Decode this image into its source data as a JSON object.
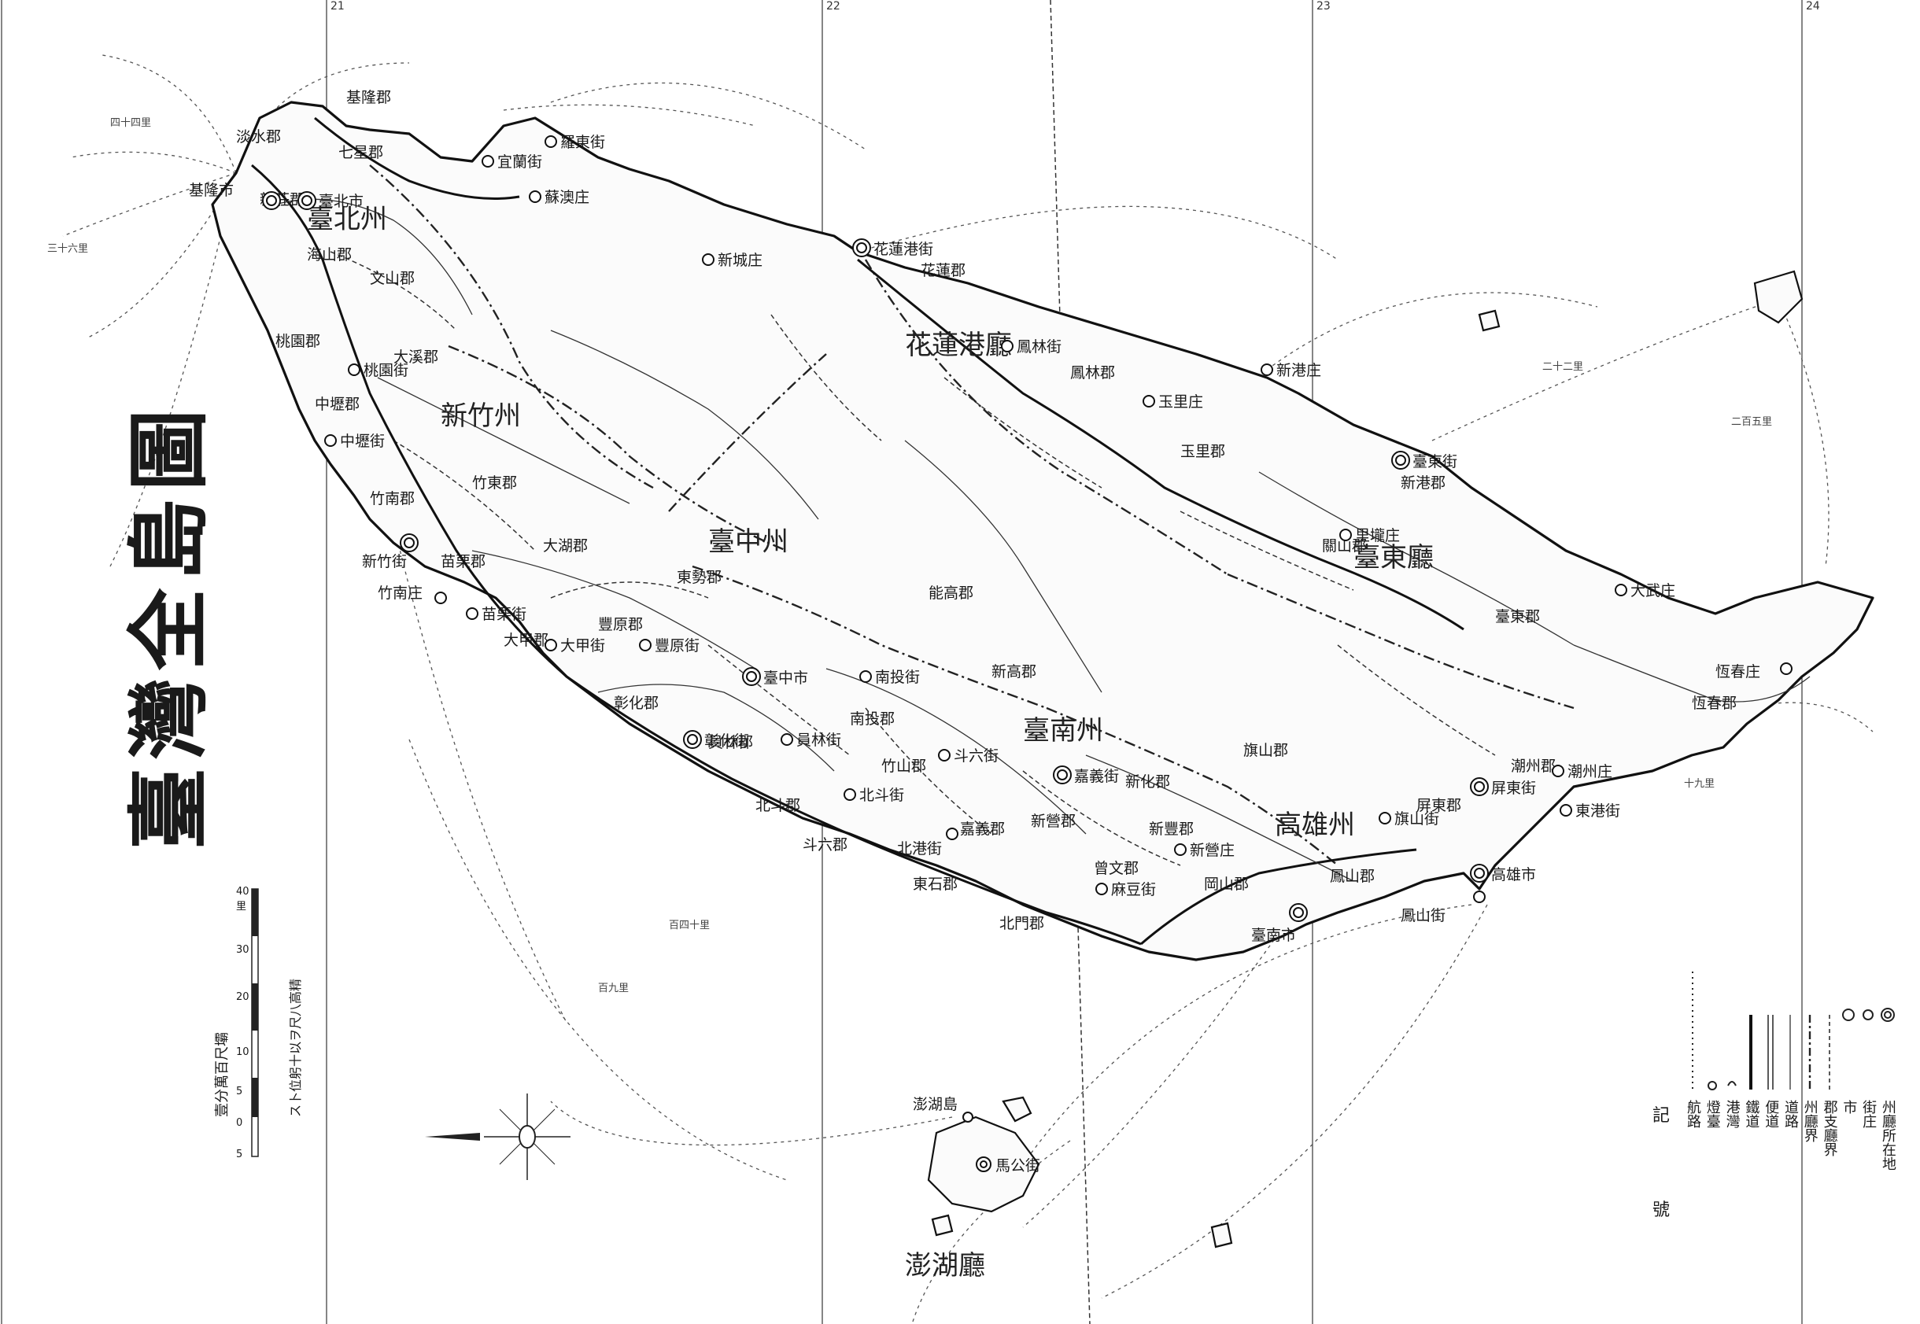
{
  "map": {
    "title": "臺灣全島圖",
    "scale_ratio": "壹分萬百尺壩",
    "scale_ticks": [
      "5",
      "0",
      "5",
      "10",
      "20",
      "30",
      "40里"
    ],
    "scale_note": "ス卜位躬十以ヲ尺八高精",
    "grid_labels": [
      "21",
      "22",
      "23",
      "24",
      "22"
    ],
    "legend": {
      "head_right": "記",
      "head_left": "號",
      "items": [
        {
          "label": "航路",
          "symbol": "dotted"
        },
        {
          "label": "燈臺",
          "symbol": "lighthouse"
        },
        {
          "label": "港灣",
          "symbol": "port"
        },
        {
          "label": "鐵道",
          "symbol": "railway"
        },
        {
          "label": "便道",
          "symbol": "rail-narrow"
        },
        {
          "label": "道路",
          "symbol": "road"
        },
        {
          "label": "州廳界",
          "symbol": "pref-boundary"
        },
        {
          "label": "郡支廳界",
          "symbol": "district-boundary"
        },
        {
          "label": "市",
          "symbol": "city"
        },
        {
          "label": "街庄",
          "symbol": "town"
        },
        {
          "label": "州廳所在地",
          "symbol": "capital"
        }
      ]
    },
    "regions": [
      "臺北州",
      "新竹州",
      "臺中州",
      "臺南州",
      "高雄州",
      "花蓮港廳",
      "臺東廳",
      "澎湖廳"
    ],
    "districts": [
      "七星郡",
      "文山郡",
      "海山郡",
      "新莊郡",
      "淡水郡",
      "基隆郡",
      "大溪郡",
      "中壢郡",
      "桃園郡",
      "竹東郡",
      "竹南郡",
      "苗栗郡",
      "大湖郡",
      "東勢郡",
      "豐原郡",
      "大甲郡",
      "彰化郡",
      "員林郡",
      "北斗郡",
      "南投郡",
      "能高郡",
      "新高郡",
      "竹山郡",
      "斗六郡",
      "嘉義郡",
      "東石郡",
      "新營郡",
      "曾文郡",
      "北門郡",
      "新豐郡",
      "新化郡",
      "岡山郡",
      "鳳山郡",
      "屏東郡",
      "潮州郡",
      "恆春郡",
      "旗山郡",
      "花蓮郡",
      "鳳林郡",
      "玉里郡",
      "臺東郡",
      "關山郡",
      "新港郡"
    ],
    "cities": [
      {
        "name": "臺北市"
      },
      {
        "name": "基隆市"
      },
      {
        "name": "新竹街"
      },
      {
        "name": "臺中市"
      },
      {
        "name": "彰化街"
      },
      {
        "name": "嘉義街"
      },
      {
        "name": "臺南市"
      },
      {
        "name": "高雄市"
      },
      {
        "name": "屏東街"
      },
      {
        "name": "花蓮港街"
      },
      {
        "name": "臺東街"
      },
      {
        "name": "馬公街"
      }
    ],
    "towns": [
      "宜蘭街",
      "羅東街",
      "蘇澳庄",
      "桃園街",
      "中壢街",
      "苗栗街",
      "竹南庄",
      "大甲街",
      "豐原街",
      "員林街",
      "北斗街",
      "斗六街",
      "南投街",
      "新營庄",
      "鳳山街",
      "旗山街",
      "潮州庄",
      "東港街",
      "恆春庄",
      "玉里庄",
      "鳳林街",
      "新港庄",
      "大武庄",
      "里壠庄",
      "新城庄",
      "澎湖島",
      "麻豆街",
      "北港街"
    ],
    "routes": [
      "四十四里",
      "三十六里",
      "百四十里",
      "百九里",
      "二十二里",
      "二百五里",
      "十九里"
    ]
  }
}
